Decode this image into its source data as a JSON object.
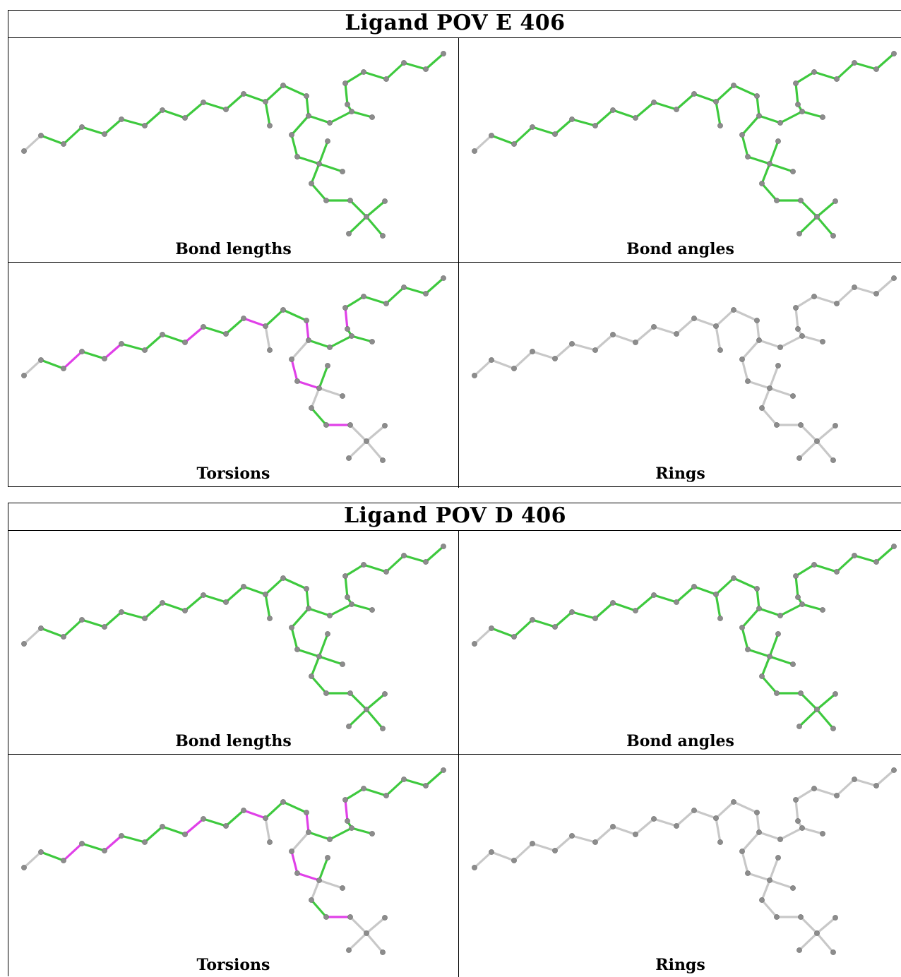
{
  "tables": [
    {
      "title": "Ligand POV E 406",
      "panels": [
        {
          "caption": "Bond lengths",
          "style": "lengths"
        },
        {
          "caption": "Bond angles",
          "style": "angles"
        },
        {
          "caption": "Torsions",
          "style": "torsions"
        },
        {
          "caption": "Rings",
          "style": "rings"
        }
      ]
    },
    {
      "title": "Ligand POV D 406",
      "panels": [
        {
          "caption": "Bond lengths",
          "style": "lengths"
        },
        {
          "caption": "Bond angles",
          "style": "angles"
        },
        {
          "caption": "Torsions",
          "style": "torsions"
        },
        {
          "caption": "Rings",
          "style": "rings"
        }
      ]
    }
  ],
  "colors": {
    "ok_bond": "#3ec93e",
    "outlier_bond": "#e040e8",
    "neutral_bond": "#c8c8c8",
    "atom": "#8c8c8c",
    "border": "#000000"
  },
  "icon_names": [
    "ligand-structure-diagram"
  ]
}
